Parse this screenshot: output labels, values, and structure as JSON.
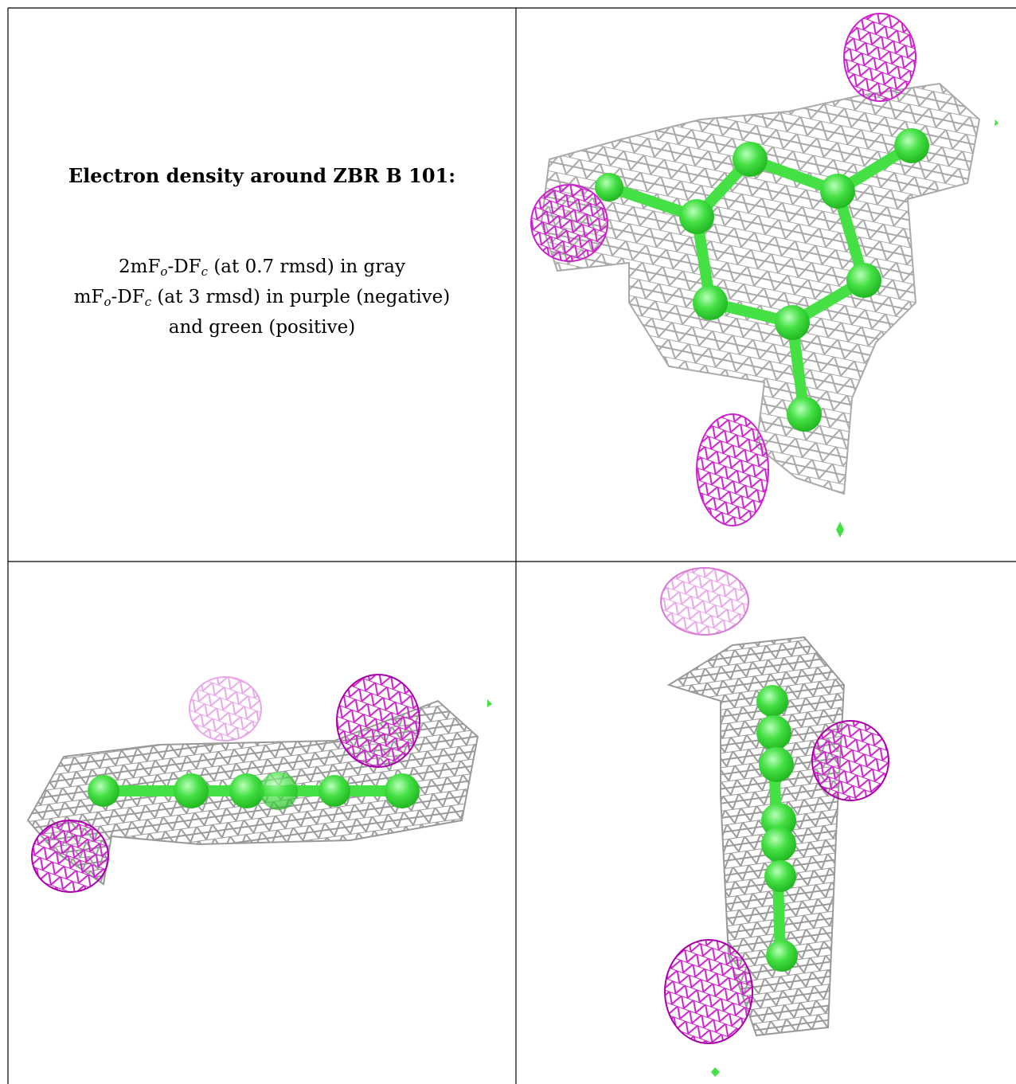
{
  "caption": {
    "title": "Electron density around ZBR B 101:",
    "lines": [
      [
        "2mF",
        "o",
        "-DF",
        "c",
        " (at 0.7 rmsd) in gray"
      ],
      [
        "mF",
        "o",
        "-DF",
        "c",
        " (at 3 rmsd) in purple (negative)"
      ],
      [
        "and green (positive)"
      ]
    ]
  }
}
